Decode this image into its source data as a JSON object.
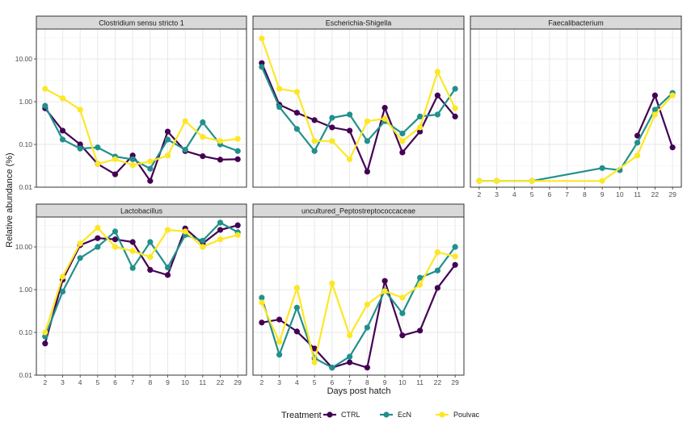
{
  "chart_data": {
    "type": "line",
    "ylabel": "Relative abundance (%)",
    "xlabel": "Days post hatch",
    "y_scale": "log10",
    "ylim": [
      0.01,
      50
    ],
    "y_ticks": [
      "0.01",
      "0.10",
      "1.00",
      "10.00"
    ],
    "x_categories": [
      "2",
      "3",
      "4",
      "5",
      "6",
      "7",
      "8",
      "9",
      "10",
      "11",
      "22",
      "29"
    ],
    "grid": true,
    "legend": {
      "title": "Treatment",
      "position": "bottom",
      "entries": [
        "CTRL",
        "EcN",
        "Poulvac"
      ]
    },
    "colors": {
      "CTRL": "#440154",
      "EcN": "#21908c",
      "Poulvac": "#fde725"
    },
    "panels": [
      {
        "title": "Clostridium sensu stricto 1",
        "series": [
          {
            "name": "CTRL",
            "values": [
              0.7,
              0.21,
              0.1,
              0.035,
              0.02,
              0.055,
              0.014,
              0.2,
              0.07,
              0.053,
              0.044,
              0.045
            ]
          },
          {
            "name": "EcN",
            "values": [
              0.8,
              0.13,
              0.08,
              0.085,
              0.052,
              0.045,
              0.027,
              0.13,
              0.075,
              0.33,
              0.1,
              0.07
            ]
          },
          {
            "name": "Poulvac",
            "values": [
              2.0,
              1.2,
              0.65,
              0.035,
              0.045,
              0.033,
              0.04,
              0.055,
              0.35,
              0.15,
              0.12,
              0.135
            ]
          }
        ]
      },
      {
        "title": "Escherichia-Shigella",
        "series": [
          {
            "name": "CTRL",
            "values": [
              8.0,
              0.85,
              0.55,
              0.37,
              0.25,
              0.21,
              0.023,
              0.72,
              0.065,
              0.2,
              1.4,
              0.45
            ]
          },
          {
            "name": "EcN",
            "values": [
              6.5,
              0.75,
              0.23,
              0.07,
              0.42,
              0.5,
              0.12,
              0.35,
              0.18,
              0.45,
              0.5,
              2.0
            ]
          },
          {
            "name": "Poulvac",
            "values": [
              30.0,
              2.0,
              1.7,
              0.12,
              0.12,
              0.045,
              0.35,
              0.4,
              0.12,
              0.25,
              5.0,
              0.7
            ]
          }
        ]
      },
      {
        "title": "Faecalibacterium",
        "series": [
          {
            "name": "CTRL",
            "values": [
              null,
              null,
              null,
              null,
              null,
              null,
              null,
              null,
              null,
              0.16,
              1.4,
              0.085
            ]
          },
          {
            "name": "EcN",
            "values": [
              0.014,
              0.014,
              null,
              0.014,
              null,
              null,
              null,
              0.028,
              0.025,
              0.11,
              0.65,
              1.6
            ]
          },
          {
            "name": "Poulvac",
            "values": [
              0.014,
              0.014,
              null,
              0.014,
              null,
              null,
              null,
              0.014,
              null,
              0.055,
              0.5,
              1.4
            ]
          }
        ]
      },
      {
        "title": "Lactobacillus",
        "series": [
          {
            "name": "CTRL",
            "values": [
              0.055,
              1.7,
              11.0,
              16.0,
              15.0,
              13.0,
              2.9,
              2.2,
              27.0,
              12.0,
              25.0,
              32.0
            ]
          },
          {
            "name": "EcN",
            "values": [
              0.08,
              0.9,
              5.5,
              10.0,
              23.0,
              3.2,
              13.0,
              3.3,
              19.0,
              14.0,
              37.0,
              22.0
            ]
          },
          {
            "name": "Poulvac",
            "values": [
              0.1,
              2.0,
              12.0,
              28.0,
              10.0,
              8.0,
              5.8,
              25.0,
              23.0,
              10.0,
              15.0,
              19.0
            ]
          }
        ]
      },
      {
        "title": "uncultured_Peptostreptococcaceae",
        "series": [
          {
            "name": "CTRL",
            "values": [
              0.17,
              0.2,
              0.105,
              0.042,
              0.015,
              0.02,
              0.015,
              1.6,
              0.085,
              0.11,
              1.1,
              3.8
            ]
          },
          {
            "name": "EcN",
            "values": [
              0.65,
              0.03,
              0.38,
              0.025,
              0.015,
              0.027,
              0.13,
              0.95,
              0.28,
              1.9,
              2.8,
              10.0
            ]
          },
          {
            "name": "Poulvac",
            "values": [
              0.5,
              0.06,
              1.1,
              0.02,
              1.4,
              0.085,
              0.45,
              0.92,
              0.65,
              1.3,
              7.5,
              6.0
            ]
          }
        ]
      }
    ]
  }
}
